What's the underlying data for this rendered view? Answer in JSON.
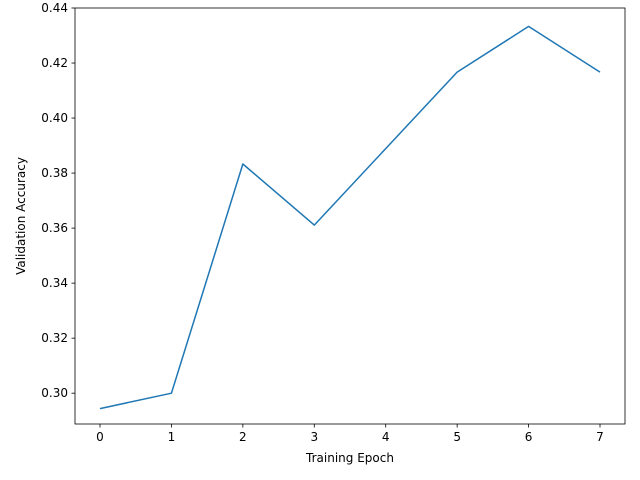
{
  "chart_data": {
    "type": "line",
    "title": "",
    "xlabel": "Training Epoch",
    "ylabel": "Validation Accuracy",
    "grid": false,
    "xlim": [
      -0.35,
      7.35
    ],
    "ylim": [
      0.2888,
      0.44
    ],
    "xticks": [
      0,
      1,
      2,
      3,
      4,
      5,
      6,
      7
    ],
    "xtick_labels": [
      "0",
      "1",
      "2",
      "3",
      "4",
      "5",
      "6",
      "7"
    ],
    "yticks": [
      0.3,
      0.32,
      0.34,
      0.36,
      0.38,
      0.4,
      0.42,
      0.44
    ],
    "ytick_labels": [
      "0.30",
      "0.32",
      "0.34",
      "0.36",
      "0.38",
      "0.40",
      "0.42",
      "0.44"
    ],
    "series": [
      {
        "color": "#1f77b4",
        "x": [
          0,
          1,
          2,
          3,
          4,
          5,
          6,
          7
        ],
        "y": [
          0.2944,
          0.3,
          0.3833,
          0.3611,
          0.3889,
          0.4167,
          0.4333,
          0.4167
        ]
      }
    ]
  }
}
